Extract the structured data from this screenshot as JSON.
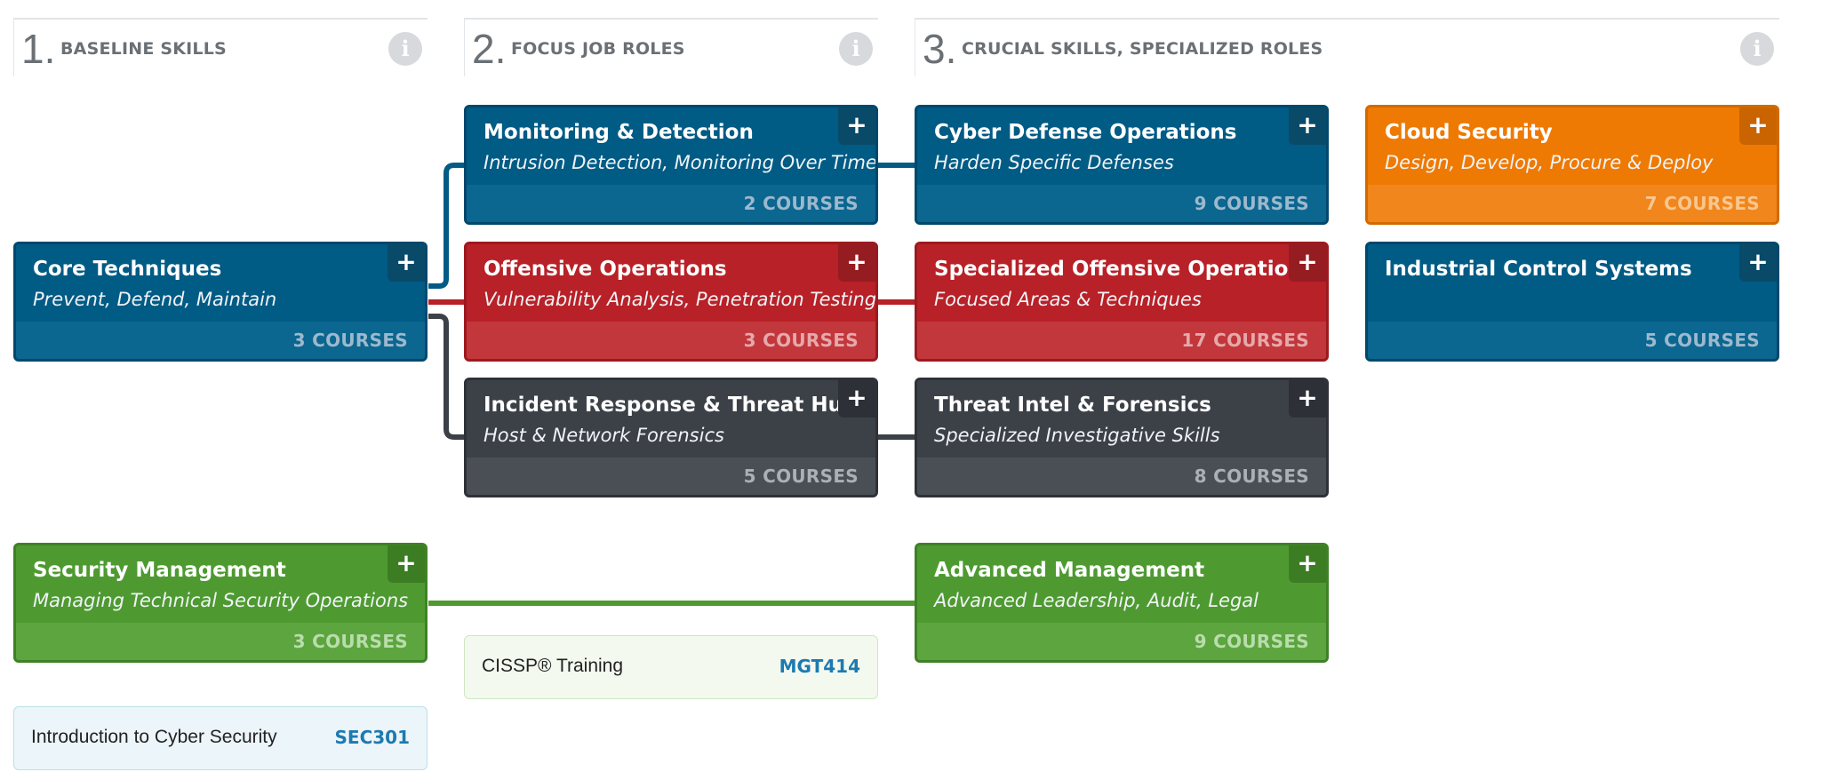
{
  "columns": [
    {
      "num": "1.",
      "title": "BASELINE SKILLS",
      "info": "i"
    },
    {
      "num": "2.",
      "title": "FOCUS JOB ROLES",
      "info": "i"
    },
    {
      "num": "3.",
      "title": "CRUCIAL SKILLS, SPECIALIZED ROLES",
      "info": "i"
    }
  ],
  "icons": {
    "plus": "+",
    "info": "info-icon",
    "plus_icon": "plus-icon"
  },
  "colors": {
    "blue": "#005b85",
    "red": "#b82127",
    "gray": "#3c4148",
    "green": "#4e9a31",
    "orange": "#ee7a04",
    "course_code": "#1d7ab0"
  },
  "cards": {
    "core_techniques": {
      "title": "Core Techniques",
      "subtitle": "Prevent, Defend, Maintain",
      "count": "3 COURSES"
    },
    "security_management": {
      "title": "Security Management",
      "subtitle": "Managing Technical Security Operations",
      "count": "3 COURSES"
    },
    "monitoring_detection": {
      "title": "Monitoring & Detection",
      "subtitle": "Intrusion Detection, Monitoring Over Time",
      "count": "2 COURSES"
    },
    "offensive_operations": {
      "title": "Offensive Operations",
      "subtitle": "Vulnerability Analysis, Penetration Testing",
      "count": "3 COURSES"
    },
    "incident_response": {
      "title": "Incident Response & Threat Hunting",
      "subtitle": "Host & Network Forensics",
      "count": "5 COURSES"
    },
    "cyber_defense": {
      "title": "Cyber Defense Operations",
      "subtitle": "Harden Specific Defenses",
      "count": "9 COURSES"
    },
    "specialized_offensive": {
      "title": "Specialized Offensive Operations",
      "subtitle": "Focused Areas & Techniques",
      "count": "17 COURSES"
    },
    "threat_intel": {
      "title": "Threat Intel & Forensics",
      "subtitle": "Specialized Investigative Skills",
      "count": "8 COURSES"
    },
    "advanced_management": {
      "title": "Advanced Management",
      "subtitle": "Advanced Leadership, Audit, Legal",
      "count": "9 COURSES"
    },
    "cloud_security": {
      "title": "Cloud Security",
      "subtitle": "Design, Develop, Procure & Deploy",
      "count": "7 COURSES"
    },
    "industrial_control": {
      "title": "Industrial Control Systems",
      "subtitle": "",
      "count": "5 COURSES"
    }
  },
  "courses": {
    "cissp": {
      "name": "CISSP® Training",
      "code": "MGT414"
    },
    "intro": {
      "name": "Introduction to Cyber Security",
      "code": "SEC301"
    }
  }
}
